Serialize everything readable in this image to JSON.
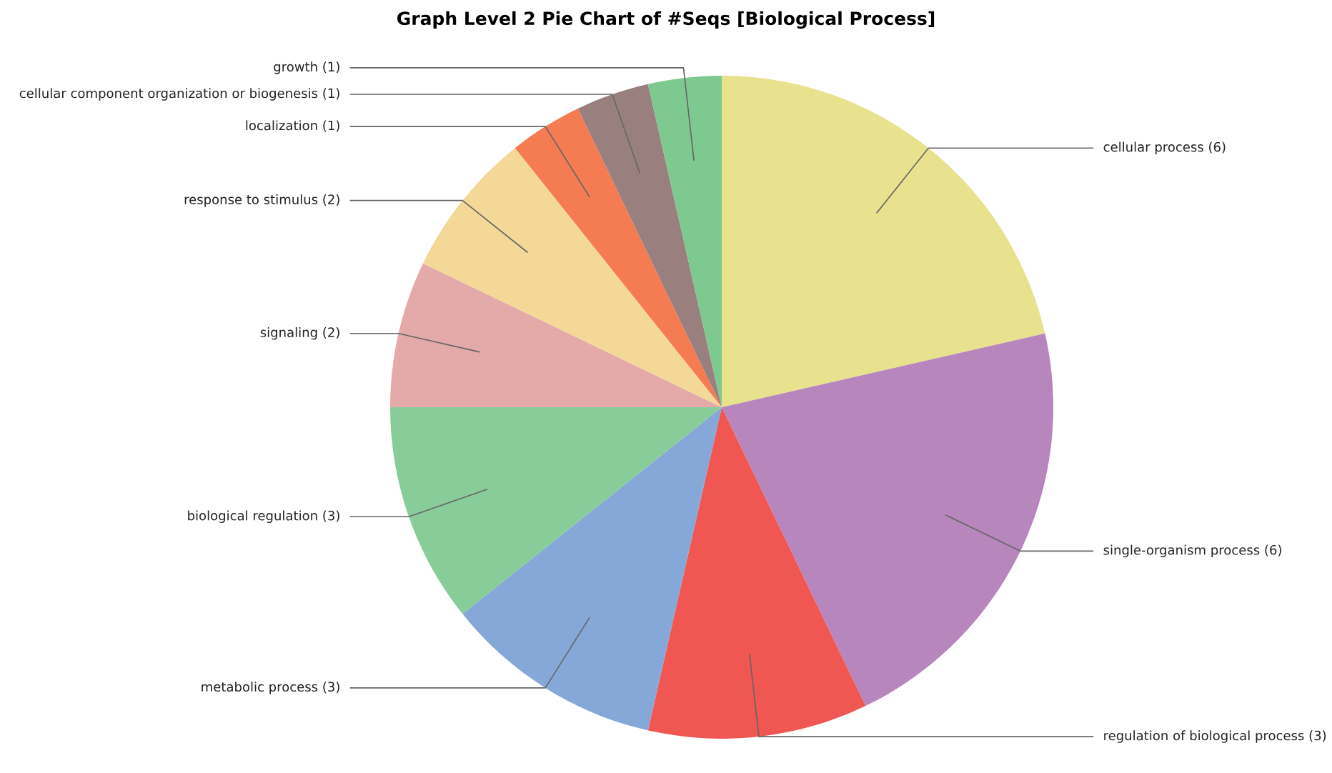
{
  "chart_data": {
    "type": "pie",
    "title": "Graph Level 2 Pie Chart of #Seqs [Biological Process]",
    "categories": [
      "cellular process (6)",
      "single-organism process (6)",
      "regulation of biological process (3)",
      "metabolic process (3)",
      "biological regulation (3)",
      "signaling (2)",
      "response to stimulus (2)",
      "localization (1)",
      "cellular component organization or biogenesis (1)",
      "growth (1)"
    ],
    "values": [
      6,
      6,
      3,
      3,
      3,
      2,
      2,
      1,
      1,
      1
    ],
    "colors": [
      "#e8e28e",
      "#b686bd",
      "#f05752",
      "#86a8d8",
      "#88cc9a",
      "#e4a9a9",
      "#f4d898",
      "#f47b52",
      "#9a7f7f",
      "#7ec98f"
    ]
  }
}
